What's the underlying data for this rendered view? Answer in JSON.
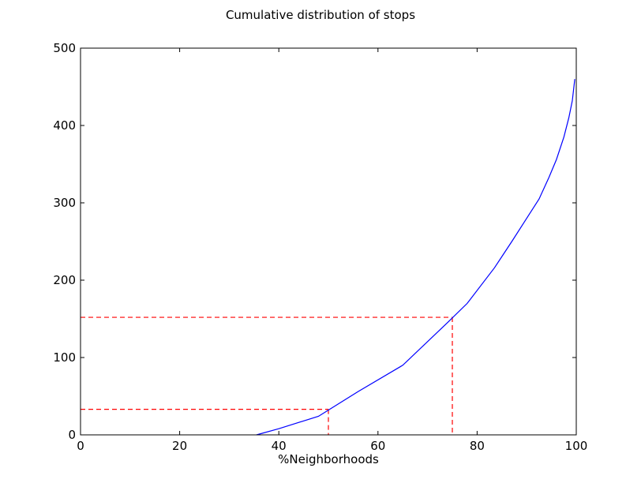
{
  "chart_data": {
    "type": "line",
    "title": "Cumulative distribution of stops",
    "xlabel": "%Neighborhoods",
    "ylabel": "",
    "xlim": [
      0,
      100
    ],
    "ylim": [
      0,
      500
    ],
    "xticks": [
      "0",
      "20",
      "40",
      "60",
      "80",
      "100"
    ],
    "yticks": [
      "0",
      "100",
      "200",
      "300",
      "400",
      "500"
    ],
    "grid": false,
    "series": [
      {
        "color": "#0000ff",
        "x": [
          35.5,
          40,
          48,
          56,
          65,
          74,
          78,
          83.5,
          87,
          90.5,
          92.5,
          94.5,
          96,
          97.5,
          98.5,
          99.2,
          99.7
        ],
        "y": [
          0,
          8,
          24,
          56,
          90,
          145,
          170,
          216,
          250,
          285,
          305,
          333,
          356,
          385,
          410,
          432,
          460
        ]
      }
    ],
    "reference_lines": [
      {
        "color": "#ff0000",
        "style": "dashed",
        "x": 50,
        "y": 33
      },
      {
        "color": "#ff0000",
        "style": "dashed",
        "x": 75,
        "y": 152
      }
    ]
  }
}
